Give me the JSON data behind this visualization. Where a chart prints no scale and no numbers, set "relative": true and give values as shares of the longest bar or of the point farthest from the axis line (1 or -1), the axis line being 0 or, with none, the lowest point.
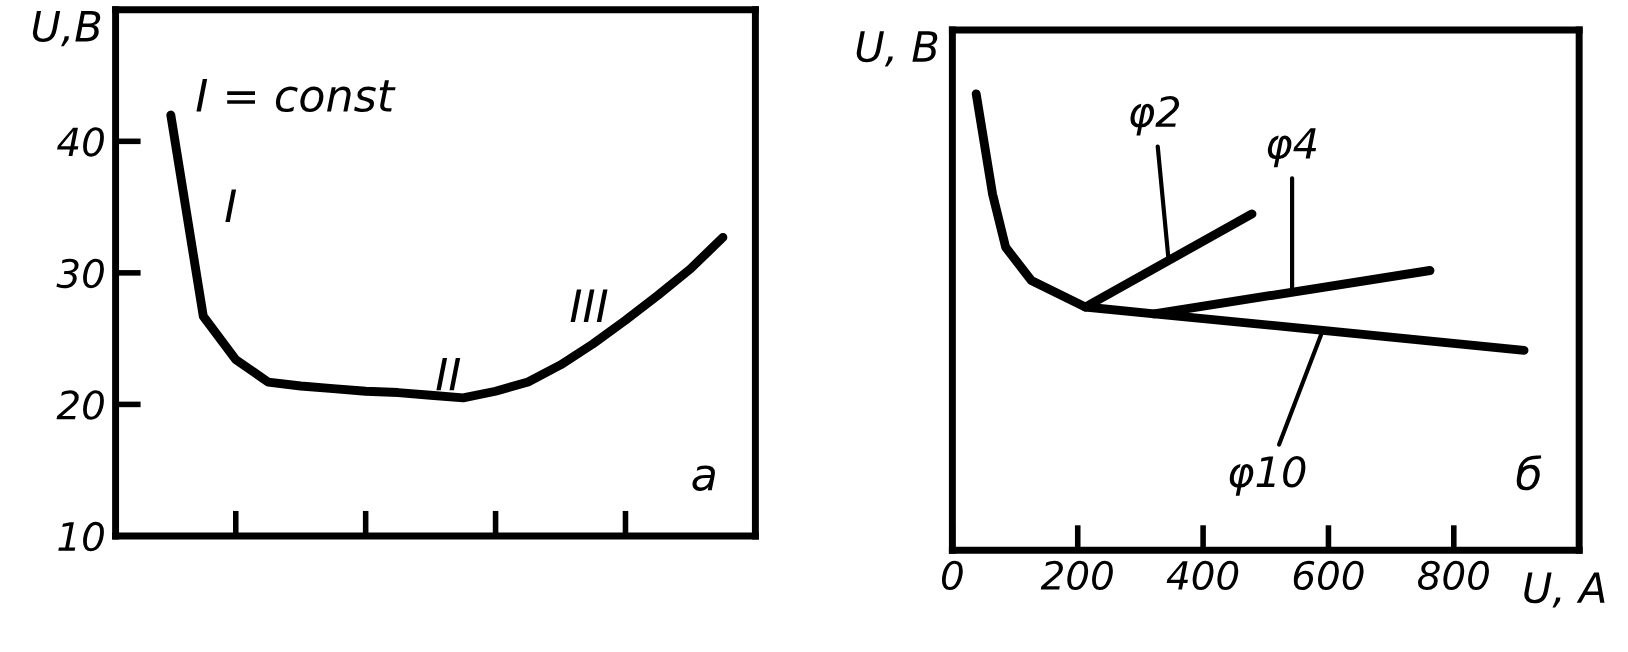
{
  "chart_data": [
    {
      "type": "line",
      "ylabel": "U,B",
      "annotations": [
        "I = const",
        "I",
        "II",
        "III",
        "a"
      ],
      "categories": [
        null,
        null,
        null,
        null,
        null,
        null,
        null,
        null,
        null,
        null,
        null,
        null,
        null,
        null,
        null,
        null,
        null,
        null
      ],
      "series": [
        {
          "color": "#000000",
          "values": [
            42,
            26.7,
            23.4,
            21.7,
            21.4,
            21.2,
            21.0,
            20.9,
            20.7,
            20.5,
            21.0,
            21.7,
            23.0,
            24.6,
            26.4,
            28.3,
            30.3,
            32.7
          ]
        }
      ],
      "ylim": [
        10,
        50
      ],
      "yticks": [
        10,
        20,
        30,
        40
      ],
      "line_style": "solid"
    },
    {
      "type": "line",
      "relative": true,
      "ylabel": "U, B",
      "xlabel": "U, A",
      "annotations": [
        "б"
      ],
      "xlim": [
        0,
        1000
      ],
      "xticks": [
        0,
        200,
        400,
        600,
        800
      ],
      "tick_labels": "x",
      "line_style": "solid",
      "series": [
        {
          "name": "φ10",
          "color": "#000000",
          "x": [
            38,
            64,
            85,
            126,
            212,
            322,
            591,
            912
          ],
          "values": [
            1.0,
            0.781,
            0.664,
            0.591,
            0.533,
            0.518,
            0.482,
            0.438
          ]
        },
        {
          "name": "φ2",
          "color": "#000000",
          "x": [
            212,
            478
          ],
          "values": [
            0.533,
            0.737
          ]
        },
        {
          "name": "φ4",
          "color": "#000000",
          "x": [
            322,
            762
          ],
          "values": [
            0.518,
            0.613
          ]
        }
      ]
    }
  ]
}
